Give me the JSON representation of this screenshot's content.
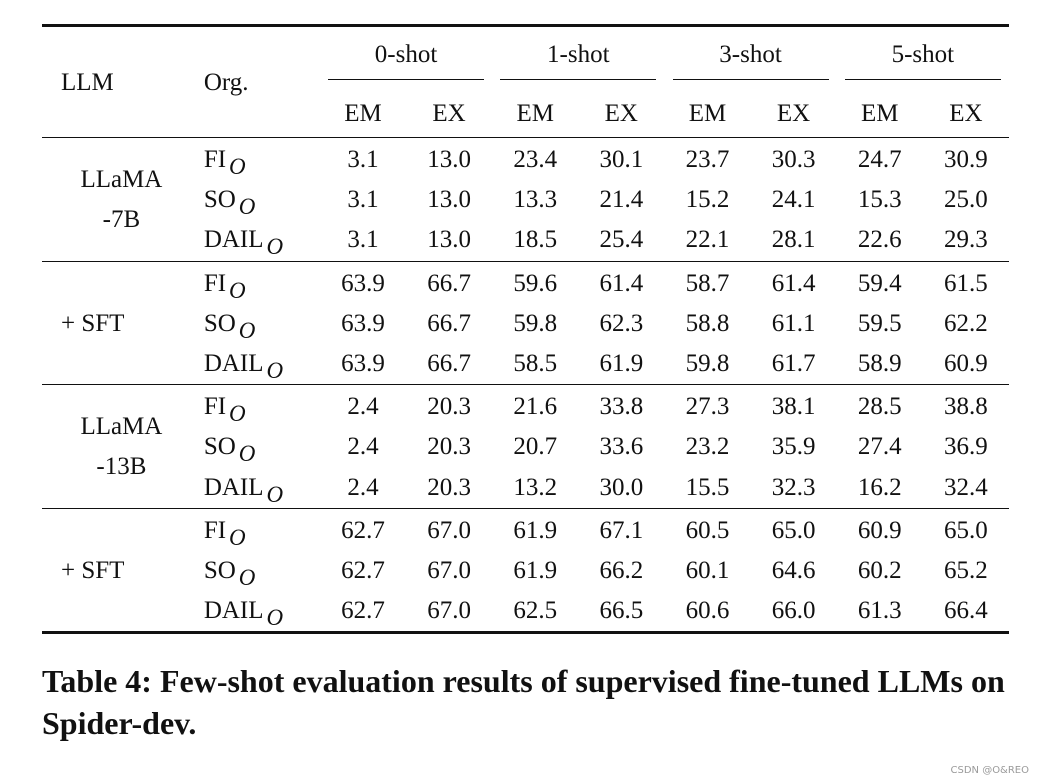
{
  "table": {
    "header": {
      "llm": "LLM",
      "org": "Org.",
      "shots": [
        "0-shot",
        "1-shot",
        "3-shot",
        "5-shot"
      ],
      "metrics": [
        "EM",
        "EX",
        "EM",
        "EX",
        "EM",
        "EX",
        "EM",
        "EX"
      ]
    },
    "groups": [
      {
        "llm_line1": "LLaMA",
        "llm_line2": "-7B",
        "rows": [
          {
            "org": "FI",
            "sub": "O",
            "values": [
              "3.1",
              "13.0",
              "23.4",
              "30.1",
              "23.7",
              "30.3",
              "24.7",
              "30.9"
            ]
          },
          {
            "org": "SO",
            "sub": "O",
            "values": [
              "3.1",
              "13.0",
              "13.3",
              "21.4",
              "15.2",
              "24.1",
              "15.3",
              "25.0"
            ]
          },
          {
            "org": "DAIL",
            "sub": "O",
            "values": [
              "3.1",
              "13.0",
              "18.5",
              "25.4",
              "22.1",
              "28.1",
              "22.6",
              "29.3"
            ]
          }
        ]
      },
      {
        "llm_line1": "+ SFT",
        "llm_line2": "",
        "rows": [
          {
            "org": "FI",
            "sub": "O",
            "values": [
              "63.9",
              "66.7",
              "59.6",
              "61.4",
              "58.7",
              "61.4",
              "59.4",
              "61.5"
            ]
          },
          {
            "org": "SO",
            "sub": "O",
            "values": [
              "63.9",
              "66.7",
              "59.8",
              "62.3",
              "58.8",
              "61.1",
              "59.5",
              "62.2"
            ]
          },
          {
            "org": "DAIL",
            "sub": "O",
            "values": [
              "63.9",
              "66.7",
              "58.5",
              "61.9",
              "59.8",
              "61.7",
              "58.9",
              "60.9"
            ]
          }
        ]
      },
      {
        "llm_line1": "LLaMA",
        "llm_line2": "-13B",
        "rows": [
          {
            "org": "FI",
            "sub": "O",
            "values": [
              "2.4",
              "20.3",
              "21.6",
              "33.8",
              "27.3",
              "38.1",
              "28.5",
              "38.8"
            ]
          },
          {
            "org": "SO",
            "sub": "O",
            "values": [
              "2.4",
              "20.3",
              "20.7",
              "33.6",
              "23.2",
              "35.9",
              "27.4",
              "36.9"
            ]
          },
          {
            "org": "DAIL",
            "sub": "O",
            "values": [
              "2.4",
              "20.3",
              "13.2",
              "30.0",
              "15.5",
              "32.3",
              "16.2",
              "32.4"
            ]
          }
        ]
      },
      {
        "llm_line1": "+ SFT",
        "llm_line2": "",
        "rows": [
          {
            "org": "FI",
            "sub": "O",
            "values": [
              "62.7",
              "67.0",
              "61.9",
              "67.1",
              "60.5",
              "65.0",
              "60.9",
              "65.0"
            ]
          },
          {
            "org": "SO",
            "sub": "O",
            "values": [
              "62.7",
              "67.0",
              "61.9",
              "66.2",
              "60.1",
              "64.6",
              "60.2",
              "65.2"
            ]
          },
          {
            "org": "DAIL",
            "sub": "O",
            "values": [
              "62.7",
              "67.0",
              "62.5",
              "66.5",
              "60.6",
              "66.0",
              "61.3",
              "66.4"
            ]
          }
        ]
      }
    ]
  },
  "caption": "Table 4: Few-shot evaluation results of supervised fine-tuned LLMs on Spider-dev.",
  "watermark": "CSDN @O&REO"
}
